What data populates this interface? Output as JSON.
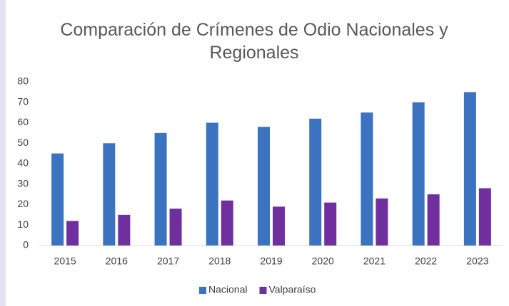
{
  "chart_data": {
    "type": "bar",
    "title": "Comparación de Crímenes de Odio Nacionales y Regionales",
    "categories": [
      "2015",
      "2016",
      "2017",
      "2018",
      "2019",
      "2020",
      "2021",
      "2022",
      "2023"
    ],
    "series": [
      {
        "name": "Nacional",
        "color": "#3b73c0",
        "values": [
          45,
          50,
          55,
          60,
          58,
          62,
          65,
          70,
          75
        ]
      },
      {
        "name": "Valparaíso",
        "color": "#6f2f9f",
        "values": [
          12,
          15,
          18,
          22,
          19,
          21,
          23,
          25,
          28
        ]
      }
    ],
    "ylim": [
      0,
      80
    ],
    "yticks": [
      0,
      10,
      20,
      30,
      40,
      50,
      60,
      70,
      80
    ],
    "grid": false,
    "legend": "bottom"
  }
}
